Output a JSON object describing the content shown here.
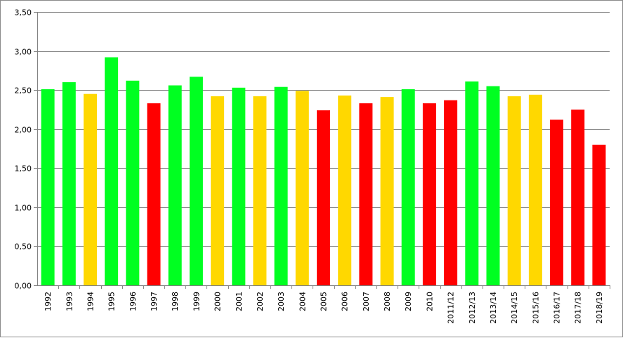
{
  "chart_data": {
    "type": "bar",
    "title": "",
    "xlabel": "",
    "ylabel": "",
    "ylim": [
      0,
      3.5
    ],
    "yticks": [
      "0,00",
      "0,50",
      "1,00",
      "1,50",
      "2,00",
      "2,50",
      "3,00",
      "3,50"
    ],
    "grid": true,
    "legend": "none",
    "colors": {
      "green": "#00ff21",
      "yellow": "#ffd800",
      "red": "#ff0000",
      "grid": "#808080",
      "axis": "#808080"
    },
    "categories": [
      "1992",
      "1993",
      "1994",
      "1995",
      "1996",
      "1997",
      "1998",
      "1999",
      "2000",
      "2001",
      "2002",
      "2003",
      "2004",
      "2005",
      "2006",
      "2007",
      "2008",
      "2009",
      "2010",
      "2011/12",
      "2012/13",
      "2013/14",
      "2014/15",
      "2015/16",
      "2016/17",
      "2017/18",
      "2018/19"
    ],
    "values": [
      2.51,
      2.6,
      2.45,
      2.92,
      2.62,
      2.33,
      2.56,
      2.67,
      2.42,
      2.53,
      2.42,
      2.54,
      2.49,
      2.24,
      2.43,
      2.33,
      2.41,
      2.51,
      2.33,
      2.37,
      2.61,
      2.55,
      2.42,
      2.44,
      2.12,
      2.25,
      1.8
    ],
    "bar_colors": [
      "green",
      "green",
      "yellow",
      "green",
      "green",
      "red",
      "green",
      "green",
      "yellow",
      "green",
      "yellow",
      "green",
      "yellow",
      "red",
      "yellow",
      "red",
      "yellow",
      "green",
      "red",
      "red",
      "green",
      "green",
      "yellow",
      "yellow",
      "red",
      "red",
      "red"
    ]
  }
}
